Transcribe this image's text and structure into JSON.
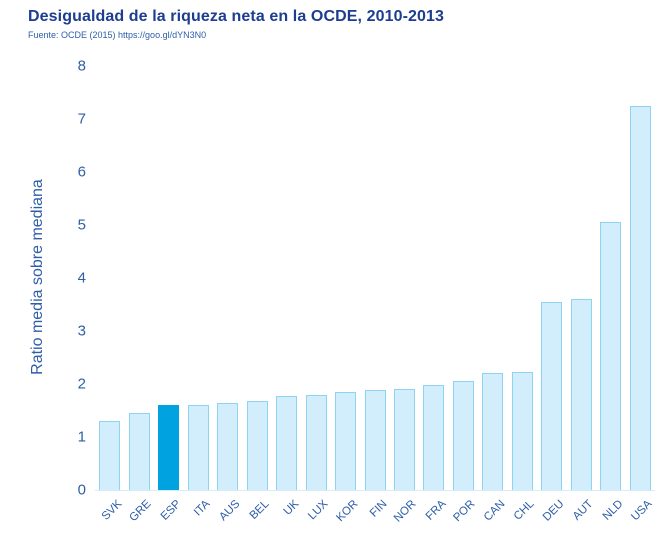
{
  "chart_data": {
    "type": "bar",
    "title": "Desigualdad de la riqueza neta en la OCDE, 2010-2013",
    "subtitle": "Fuente: OCDE (2015) https://goo.gl/dYN3N0",
    "ylabel": "Ratio media sobre mediana",
    "xlabel": "",
    "ylim": [
      0,
      8
    ],
    "yticks": [
      0,
      1,
      2,
      3,
      4,
      5,
      6,
      7,
      8
    ],
    "grid": false,
    "legend": "none",
    "categories": [
      "SVK",
      "GRE",
      "ESP",
      "ITA",
      "AUS",
      "BEL",
      "UK",
      "LUX",
      "KOR",
      "FIN",
      "NOR",
      "FRA",
      "POR",
      "CAN",
      "CHL",
      "DEU",
      "AUT",
      "NLD",
      "USA"
    ],
    "values": [
      1.3,
      1.45,
      1.6,
      1.6,
      1.65,
      1.68,
      1.78,
      1.8,
      1.85,
      1.88,
      1.9,
      1.98,
      2.05,
      2.2,
      2.22,
      3.55,
      3.6,
      5.05,
      7.25
    ],
    "highlight_category": "ESP",
    "colors": {
      "bar_fill": "#d2edfb",
      "bar_border": "#8ed4f0",
      "highlight_fill": "#00a3e0",
      "title_color": "#1d3d91",
      "axis_color": "#2e5ea8"
    }
  }
}
